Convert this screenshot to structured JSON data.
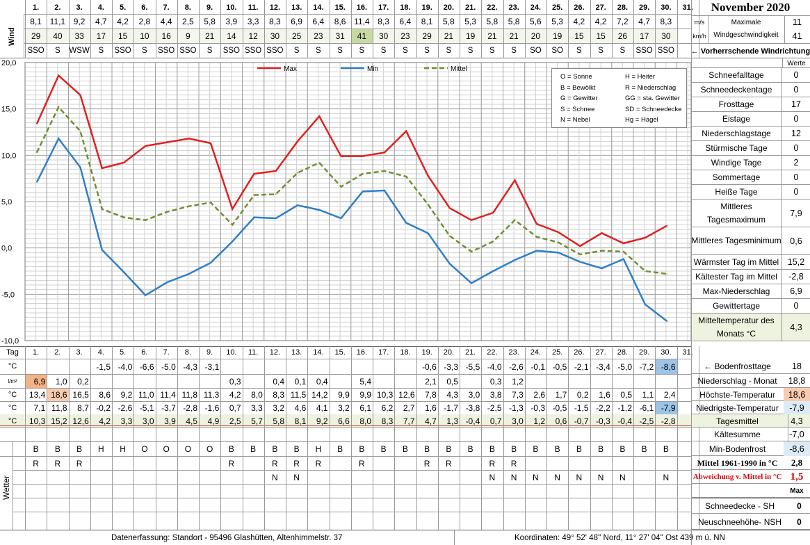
{
  "title": "November 2020",
  "wind": {
    "label": "Wind",
    "unit_ms": "m/s",
    "unit_kmh": "km/h",
    "max_label": "Maximale Windgeschwindigkeit",
    "max_ms": "11",
    "max_kmh": "41",
    "dir_label": "← Vorherrschende Windrichtung",
    "days": [
      "1.",
      "2.",
      "3.",
      "4.",
      "5.",
      "6.",
      "7.",
      "8.",
      "9.",
      "10.",
      "11.",
      "12.",
      "13.",
      "14.",
      "15.",
      "16.",
      "17.",
      "18.",
      "19.",
      "20.",
      "21.",
      "22.",
      "23.",
      "24.",
      "25.",
      "26.",
      "27.",
      "28.",
      "29.",
      "30.",
      "31."
    ],
    "ms": [
      "8,1",
      "11,1",
      "9,2",
      "4,7",
      "4,2",
      "2,8",
      "4,4",
      "2,5",
      "5,8",
      "3,9",
      "3,3",
      "8,3",
      "6,9",
      "6,4",
      "8,6",
      "11,4",
      "8,3",
      "6,4",
      "8,1",
      "5,8",
      "5,3",
      "5,8",
      "5,8",
      "5,6",
      "5,3",
      "4,2",
      "4,2",
      "7,2",
      "4,7",
      "8,3",
      ""
    ],
    "kmh": [
      "29",
      "40",
      "33",
      "17",
      "15",
      "10",
      "16",
      "9",
      "21",
      "14",
      "12",
      "30",
      "25",
      "23",
      "31",
      "41",
      "30",
      "23",
      "29",
      "21",
      "19",
      "21",
      "21",
      "20",
      "19",
      "15",
      "15",
      "26",
      "17",
      "30",
      ""
    ],
    "dir": [
      "SSO",
      "S",
      "WSW",
      "S",
      "SSO",
      "S",
      "SSO",
      "SSO",
      "S",
      "SSO",
      "SSO",
      "SSO",
      "S",
      "S",
      "S",
      "S",
      "S",
      "S",
      "S",
      "S",
      "S",
      "S",
      "S",
      "SO",
      "SO",
      "S",
      "S",
      "S",
      "SSO",
      "SSO",
      ""
    ]
  },
  "chart_data": {
    "type": "line",
    "x": [
      1,
      2,
      3,
      4,
      5,
      6,
      7,
      8,
      9,
      10,
      11,
      12,
      13,
      14,
      15,
      16,
      17,
      18,
      19,
      20,
      21,
      22,
      23,
      24,
      25,
      26,
      27,
      28,
      29,
      30
    ],
    "ylim": [
      -10,
      20
    ],
    "yticks": [
      "20,0",
      "15,0",
      "10,0",
      "5,0",
      "0,0",
      "-5,0",
      "-10,0"
    ],
    "series": [
      {
        "name": "Max",
        "color": "#e02020",
        "dash": false,
        "values": [
          13.4,
          18.6,
          16.5,
          8.6,
          9.2,
          11.0,
          11.4,
          11.8,
          11.3,
          4.2,
          8.0,
          8.3,
          11.5,
          14.2,
          9.9,
          9.9,
          10.3,
          12.6,
          7.8,
          4.3,
          3.0,
          3.8,
          7.3,
          2.6,
          1.7,
          0.2,
          1.6,
          0.5,
          1.1,
          2.4
        ]
      },
      {
        "name": "Min",
        "color": "#2f7fc7",
        "dash": false,
        "values": [
          7.1,
          11.8,
          8.7,
          -0.2,
          -2.6,
          -5.1,
          -3.7,
          -2.8,
          -1.6,
          0.7,
          3.3,
          3.2,
          4.6,
          4.1,
          3.2,
          6.1,
          6.2,
          2.7,
          1.6,
          -1.7,
          -3.8,
          -2.5,
          -1.3,
          -0.3,
          -0.5,
          -1.5,
          -2.2,
          -1.2,
          -6.1,
          -7.9
        ]
      },
      {
        "name": "Mittel",
        "color": "#6f8f2f",
        "dash": true,
        "values": [
          10.3,
          15.2,
          12.6,
          4.2,
          3.3,
          3.0,
          3.9,
          4.5,
          4.9,
          2.5,
          5.7,
          5.8,
          8.1,
          9.2,
          6.6,
          8.0,
          8.3,
          7.7,
          4.7,
          1.3,
          -0.4,
          0.7,
          3.0,
          1.2,
          0.6,
          -0.7,
          -0.3,
          -0.4,
          -2.5,
          -2.8
        ]
      }
    ]
  },
  "legend_codes": [
    [
      "O = Sonne",
      "H = Heiter"
    ],
    [
      "B = Bewölkt",
      "R = Niederschlag"
    ],
    [
      "G = Gewitter",
      "GG = sta. Gewitter"
    ],
    [
      "S = Schnee",
      "SD = Schneedecke"
    ],
    [
      "N = Nebel",
      "Hg = Hagel"
    ]
  ],
  "stats": {
    "werte_label": "Werte",
    "items": [
      {
        "label": "Schneefalltage",
        "value": "0"
      },
      {
        "label": "Schneedeckentage",
        "value": "0"
      },
      {
        "label": "Frosttage",
        "value": "17"
      },
      {
        "label": "Eistage",
        "value": "0"
      },
      {
        "label": "Niederschlagstage",
        "value": "12"
      },
      {
        "label": "Stürmische Tage",
        "value": "0"
      },
      {
        "label": "Windige Tage",
        "value": "2"
      },
      {
        "label": "Sommertage",
        "value": "0"
      },
      {
        "label": "Heiße Tage",
        "value": "0"
      },
      {
        "label": "Mittleres Tagesmaximum",
        "value": "7,9"
      },
      {
        "label": "Mittleres Tagesminimum",
        "value": "0,6"
      },
      {
        "label": "Wärmster Tag im Mittel",
        "value": "15,2"
      },
      {
        "label": "Kältester Tag im Mittel",
        "value": "-2,8"
      },
      {
        "label": "Max-Niederschlag",
        "value": "6,9"
      },
      {
        "label": "Gewittertage",
        "value": "0"
      },
      {
        "label": "Mitteltemperatur des Monats °C",
        "value": "4,3"
      }
    ]
  },
  "table": {
    "tag_label": "Tag",
    "unit_c": "°C",
    "unit_lm": "l/m²",
    "bodenfrost": [
      "",
      "",
      "",
      "-1,5",
      "-4,0",
      "-6,6",
      "-5,0",
      "-4,3",
      "-3,1",
      "",
      "",
      "",
      "",
      "",
      "",
      "",
      "",
      "",
      "-0,6",
      "-3,3",
      "-5,5",
      "-4,0",
      "-2,6",
      "-0,1",
      "-0,5",
      "-2,1",
      "-3,4",
      "-5,0",
      "-7,2",
      "-8,6",
      ""
    ],
    "niederschlag": [
      "6,9",
      "1,0",
      "0,2",
      "",
      "",
      "",
      "",
      "",
      "",
      "0,3",
      "",
      "0,4",
      "0,1",
      "0,4",
      "",
      "5,4",
      "",
      "",
      "2,1",
      "0,5",
      "",
      "0,3",
      "1,2",
      "",
      "",
      "",
      "",
      "",
      "",
      "",
      ""
    ],
    "hoechst": [
      "13,4",
      "18,6",
      "16,5",
      "8,6",
      "9,2",
      "11,0",
      "11,4",
      "11,8",
      "11,3",
      "4,2",
      "8,0",
      "8,3",
      "11,5",
      "14,2",
      "9,9",
      "9,9",
      "10,3",
      "12,6",
      "7,8",
      "4,3",
      "3,0",
      "3,8",
      "7,3",
      "2,6",
      "1,7",
      "0,2",
      "1,6",
      "0,5",
      "1,1",
      "2,4",
      ""
    ],
    "niedrigst": [
      "7,1",
      "11,8",
      "8,7",
      "-0,2",
      "-2,6",
      "-5,1",
      "-3,7",
      "-2,8",
      "-1,6",
      "0,7",
      "3,3",
      "3,2",
      "4,6",
      "4,1",
      "3,2",
      "6,1",
      "6,2",
      "2,7",
      "1,6",
      "-1,7",
      "-3,8",
      "-2,5",
      "-1,3",
      "-0,3",
      "-0,5",
      "-1,5",
      "-2,2",
      "-1,2",
      "-6,1",
      "-7,9",
      ""
    ],
    "mittel": [
      "10,3",
      "15,2",
      "12,6",
      "4,2",
      "3,3",
      "3,0",
      "3,9",
      "4,5",
      "4,9",
      "2,5",
      "5,7",
      "5,8",
      "8,1",
      "9,2",
      "6,6",
      "8,0",
      "8,3",
      "7,7",
      "4,7",
      "1,3",
      "-0,4",
      "0,7",
      "3,0",
      "1,2",
      "0,6",
      "-0,7",
      "-0,3",
      "-0,4",
      "-2,5",
      "-2,8",
      ""
    ],
    "wetter_label": "Wetter",
    "wetter1": [
      "B",
      "B",
      "B",
      "H",
      "H",
      "O",
      "O",
      "O",
      "O",
      "B",
      "B",
      "B",
      "B",
      "H",
      "B",
      "B",
      "B",
      "B",
      "B",
      "B",
      "B",
      "B",
      "B",
      "B",
      "B",
      "B",
      "B",
      "B",
      "B",
      "B",
      ""
    ],
    "wetter2": [
      "R",
      "R",
      "R",
      "",
      "",
      "",
      "",
      "",
      "",
      "R",
      "",
      "R",
      "R",
      "R",
      "",
      "R",
      "",
      "",
      "R",
      "R",
      "",
      "R",
      "R",
      "",
      "",
      "",
      "",
      "",
      "",
      "",
      ""
    ],
    "wetter3": [
      "",
      "",
      "",
      "",
      "",
      "",
      "",
      "",
      "",
      "",
      "",
      "N",
      "N",
      "",
      "",
      "",
      "",
      "",
      "",
      "",
      "",
      "N",
      "N",
      "N",
      "N",
      "N",
      "N",
      "N",
      "",
      "N",
      ""
    ]
  },
  "summary": [
    {
      "label": "← Bodenfrosttage",
      "value": "18"
    },
    {
      "label": "Niederschlag - Monat",
      "value": "18,8"
    },
    {
      "label": "Höchste-Temperatur",
      "value": "18,6"
    },
    {
      "label": "Niedrigste-Temperatur",
      "value": "-7,9"
    },
    {
      "label": "Tagesmittel",
      "value": "4,3"
    },
    {
      "label": "Kältesumme",
      "value": "-7,0"
    },
    {
      "label": "Min-Bodenfrost",
      "value": "-8,6"
    },
    {
      "label": "Mittel 1961-1990 in °C",
      "value": "2,8"
    },
    {
      "label": "Abweichung v. Mittel in °C",
      "value": "1,5"
    },
    {
      "label": "",
      "value": "Max"
    }
  ],
  "snow": [
    {
      "label": "Schneedecke -  SH",
      "value": "0"
    },
    {
      "label": "Neuschneehöhe- NSH",
      "value": "0"
    }
  ],
  "footer": {
    "left": "Datenerfassung:  Standort -  95496  Glashütten, Altenhimmelstr. 37",
    "right": "Koordinaten:  49° 52' 48'' Nord,   11° 27' 04'' Ost   439 m ü. NN"
  },
  "colors": {
    "max": "#e02020",
    "min": "#2f7fc7",
    "mittel": "#6f8f2f",
    "highlight_green": "#c6d9a0",
    "row_green": "#eef3df",
    "orange": "#f4b183",
    "blue": "#9dc3e6",
    "pink": "#f8cbad",
    "lightblue": "#ddebf7"
  }
}
